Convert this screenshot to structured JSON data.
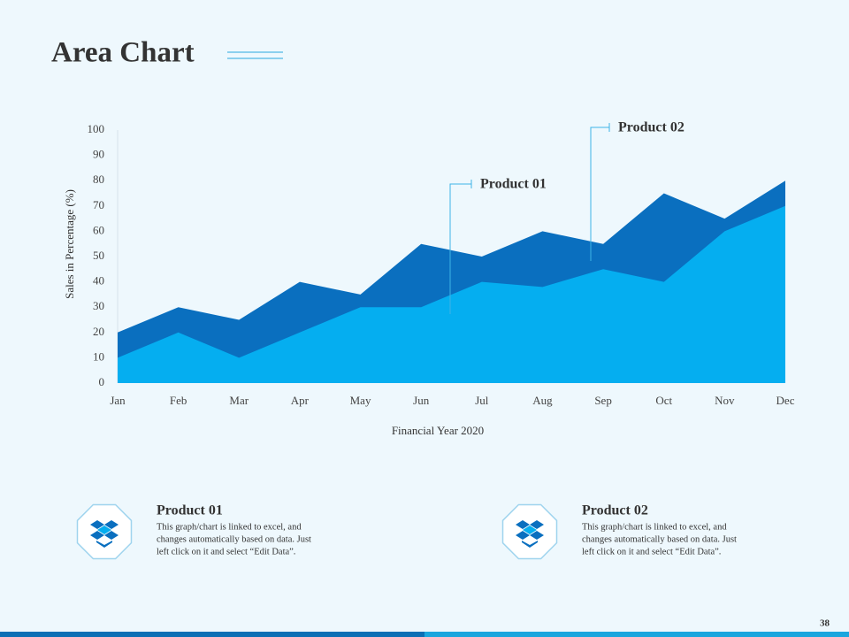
{
  "header": {
    "title": "Area Chart",
    "page_number": "38"
  },
  "chart_data": {
    "type": "area",
    "x_label": "Financial Year 2020",
    "y_label": "Sales in Percentage (%)",
    "categories": [
      "Jan",
      "Feb",
      "Mar",
      "Apr",
      "May",
      "Jun",
      "Jul",
      "Aug",
      "Sep",
      "Oct",
      "Nov",
      "Dec"
    ],
    "series": [
      {
        "name": "Product 02",
        "color": "#0a6fbf",
        "values": [
          20,
          30,
          25,
          40,
          35,
          55,
          50,
          60,
          55,
          75,
          65,
          80
        ]
      },
      {
        "name": "Product 01",
        "color": "#05aef0",
        "values": [
          10,
          20,
          10,
          20,
          30,
          30,
          40,
          38,
          45,
          40,
          60,
          70
        ]
      }
    ],
    "ylim": [
      0,
      100
    ],
    "yticks": [
      0,
      10,
      20,
      30,
      40,
      50,
      60,
      70,
      80,
      90,
      100
    ]
  },
  "cards": [
    {
      "title": "Product 01",
      "lines": [
        "This graph/chart is linked to excel, and",
        "changes automatically  based on data. Just",
        "left click  on it and select “Edit Data”."
      ]
    },
    {
      "title": "Product 02",
      "lines": [
        "This graph/chart is linked to excel, and",
        "changes automatically  based on data. Just",
        "left click  on it and select “Edit Data”."
      ]
    }
  ]
}
